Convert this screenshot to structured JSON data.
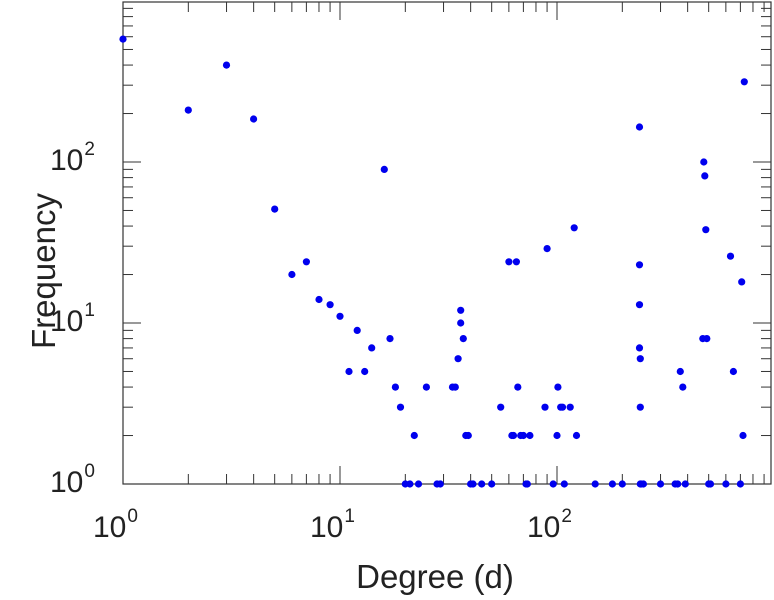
{
  "chart_data": {
    "type": "scatter",
    "title": "",
    "xlabel": "Degree (d)",
    "ylabel": "Frequency",
    "xscale": "log",
    "yscale": "log",
    "xlim": [
      1,
      900
    ],
    "ylim": [
      1,
      1000
    ],
    "x_ticks": [
      {
        "value": 1,
        "base": "10",
        "exp": "0"
      },
      {
        "value": 10,
        "base": "10",
        "exp": "1"
      },
      {
        "value": 100,
        "base": "10",
        "exp": "2"
      }
    ],
    "y_ticks": [
      {
        "value": 1,
        "base": "10",
        "exp": "0"
      },
      {
        "value": 10,
        "base": "10",
        "exp": "1"
      },
      {
        "value": 100,
        "base": "10",
        "exp": "2"
      }
    ],
    "grid": false,
    "marker_color": "#0000ee",
    "series": [
      {
        "x": [
          1,
          2,
          3,
          4,
          5,
          6,
          7,
          8,
          9,
          10,
          11,
          12,
          13,
          14,
          16,
          17,
          18,
          19,
          20,
          21,
          22,
          23,
          25,
          28,
          29,
          33,
          34,
          35,
          36,
          36,
          37,
          38,
          39,
          40,
          41,
          45,
          50,
          55,
          60,
          62,
          63,
          65,
          66,
          68,
          70,
          72,
          73,
          75,
          88,
          90,
          96,
          100,
          101,
          104,
          106,
          108,
          115,
          120,
          123,
          150,
          180,
          200,
          240,
          240,
          240,
          240,
          242,
          242,
          242,
          244,
          250,
          300,
          350,
          360,
          370,
          380,
          390,
          470,
          475,
          480,
          485,
          490,
          500,
          510,
          600,
          630,
          650,
          700,
          710,
          720,
          730
        ],
        "y": [
          580,
          210,
          400,
          185,
          51,
          20,
          24,
          14,
          13,
          11,
          5,
          9,
          5,
          7,
          90,
          8,
          4,
          3,
          1,
          1,
          2,
          1,
          4,
          1,
          1,
          4,
          4,
          6,
          12,
          10,
          8,
          2,
          2,
          1,
          1,
          1,
          1,
          3,
          24,
          2,
          2,
          24,
          4,
          2,
          2,
          1,
          1,
          2,
          3,
          29,
          1,
          2,
          4,
          3,
          3,
          1,
          3,
          39,
          2,
          1,
          1,
          1,
          165,
          23,
          13,
          7,
          6,
          3,
          1,
          1,
          1,
          1,
          1,
          1,
          5,
          4,
          1,
          8,
          100,
          82,
          38,
          8,
          1,
          1,
          1,
          26,
          5,
          1,
          18,
          2,
          315
        ]
      }
    ]
  }
}
